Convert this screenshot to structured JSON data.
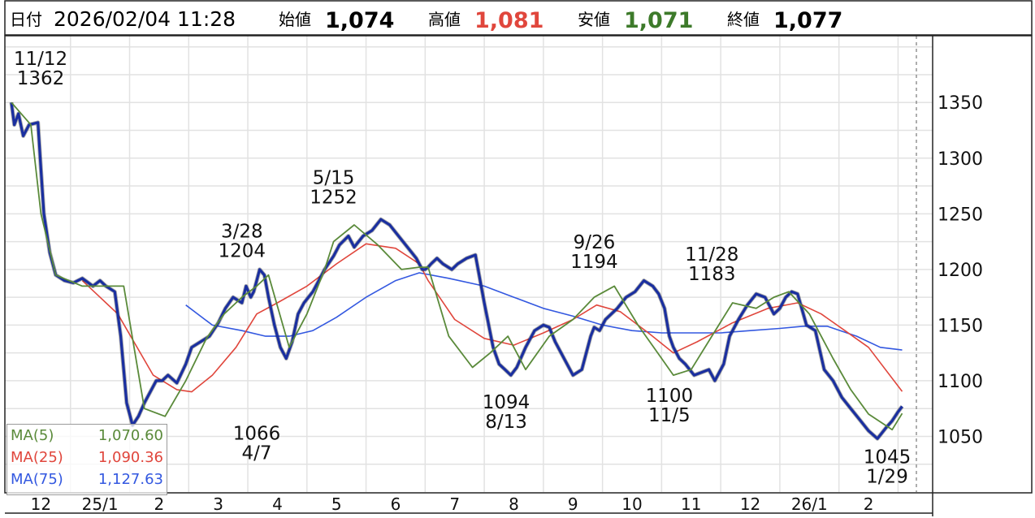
{
  "header": {
    "date_label": "日付",
    "datetime": "2026/02/04 11:28",
    "open_label": "始値",
    "open_value": "1,074",
    "high_label": "高値",
    "high_value": "1,081",
    "low_label": "安値",
    "low_value": "1,071",
    "close_label": "終値",
    "close_value": "1,077"
  },
  "legend": [
    {
      "label": "MA(5)",
      "value": "1,070.60",
      "color": "#5a8a3a"
    },
    {
      "label": "MA(25)",
      "value": "1,090.36",
      "color": "#e0463c"
    },
    {
      "label": "MA(75)",
      "value": "1,127.63",
      "color": "#3358e0"
    }
  ],
  "colors": {
    "price": "#1a2fa0",
    "price_shadow": "#111111",
    "high_text": "#e0463c",
    "low_text": "#3d7a2a",
    "grid": "#e2e2e2",
    "ma5": "#5a8a3a",
    "ma25": "#e0463c",
    "ma75": "#3358e0"
  },
  "chart_data": {
    "type": "line",
    "y_ticks": [
      1050,
      1100,
      1150,
      1200,
      1250,
      1300,
      1350
    ],
    "ylim": [
      1000,
      1410
    ],
    "x_ticks": [
      "12",
      "25/1",
      "2",
      "3",
      "4",
      "5",
      "6",
      "7",
      "8",
      "9",
      "10",
      "11",
      "12",
      "26/1",
      "2"
    ],
    "xlim": [
      0,
      15.2
    ],
    "grid": true,
    "annotations": [
      {
        "date": "11/12",
        "value": "1362",
        "x": 0.05,
        "y": 1362,
        "pos": "above"
      },
      {
        "date": "3/28",
        "value": "1204",
        "x": 3.9,
        "y": 1204,
        "pos": "above"
      },
      {
        "date": "4/7",
        "value": "1066",
        "x": 4.15,
        "y": 1066,
        "pos": "below"
      },
      {
        "date": "5/15",
        "value": "1252",
        "x": 5.45,
        "y": 1252,
        "pos": "above"
      },
      {
        "date": "8/13",
        "value": "1094",
        "x": 8.37,
        "y": 1094,
        "pos": "below"
      },
      {
        "date": "9/26",
        "value": "1194",
        "x": 9.86,
        "y": 1194,
        "pos": "above"
      },
      {
        "date": "11/5",
        "value": "1100",
        "x": 11.13,
        "y": 1100,
        "pos": "below"
      },
      {
        "date": "11/28",
        "value": "1183",
        "x": 11.85,
        "y": 1183,
        "pos": "above"
      },
      {
        "date": "1/29",
        "value": "1045",
        "x": 14.92,
        "y": 1045,
        "pos": "below"
      }
    ],
    "series": [
      {
        "name": "MA(5)",
        "x": [
          0,
          0.33,
          0.5,
          0.75,
          1.2,
          1.9,
          2.25,
          2.6,
          2.95,
          3.3,
          3.6,
          3.9,
          4.15,
          4.35,
          4.7,
          5.0,
          5.3,
          5.45,
          5.8,
          6.2,
          6.6,
          6.9,
          7.05,
          7.4,
          7.8,
          8.1,
          8.4,
          8.7,
          9.1,
          9.5,
          9.86,
          10.2,
          10.6,
          11.0,
          11.2,
          11.5,
          11.85,
          12.2,
          12.6,
          12.9,
          13.15,
          13.5,
          13.9,
          14.2,
          14.5,
          14.9,
          15.07
        ],
        "values": [
          1350,
          1330,
          1250,
          1195,
          1185,
          1185,
          1075,
          1068,
          1100,
          1138,
          1160,
          1175,
          1185,
          1195,
          1130,
          1160,
          1200,
          1225,
          1240,
          1222,
          1200,
          1202,
          1202,
          1140,
          1112,
          1125,
          1140,
          1110,
          1140,
          1155,
          1175,
          1185,
          1150,
          1120,
          1105,
          1110,
          1140,
          1170,
          1165,
          1175,
          1180,
          1160,
          1120,
          1092,
          1070,
          1056,
          1070.6
        ]
      },
      {
        "name": "MA(25)",
        "x": [
          1.2,
          1.8,
          2.4,
          2.8,
          3.05,
          3.4,
          3.8,
          4.15,
          4.5,
          5.0,
          5.5,
          6.0,
          6.5,
          6.9,
          7.05,
          7.5,
          8.0,
          8.5,
          9.0,
          9.5,
          9.9,
          10.3,
          10.8,
          11.2,
          11.6,
          12.2,
          12.8,
          13.3,
          13.7,
          14.1,
          14.5,
          15.07
        ],
        "values": [
          1190,
          1160,
          1105,
          1092,
          1090,
          1105,
          1130,
          1160,
          1170,
          1185,
          1205,
          1223,
          1219,
          1205,
          1190,
          1155,
          1138,
          1132,
          1143,
          1155,
          1168,
          1162,
          1142,
          1125,
          1135,
          1152,
          1165,
          1170,
          1160,
          1145,
          1130,
          1090.36
        ]
      },
      {
        "name": "MA(75)",
        "x": [
          2.95,
          3.4,
          3.9,
          4.3,
          4.7,
          5.1,
          5.5,
          6.0,
          6.5,
          6.9,
          7.4,
          8.0,
          8.5,
          9.0,
          9.5,
          10.0,
          10.5,
          11.0,
          11.5,
          12.0,
          12.5,
          13.0,
          13.4,
          13.8,
          14.3,
          14.7,
          15.07
        ],
        "values": [
          1168,
          1150,
          1145,
          1140,
          1140,
          1145,
          1157,
          1175,
          1190,
          1197,
          1192,
          1185,
          1175,
          1165,
          1158,
          1150,
          1145,
          1143,
          1143,
          1143,
          1145,
          1147,
          1149,
          1149,
          1140,
          1130,
          1127.63
        ]
      },
      {
        "name": "price",
        "x": [
          0,
          0.05,
          0.12,
          0.2,
          0.3,
          0.45,
          0.5,
          0.55,
          0.65,
          0.75,
          0.9,
          1.05,
          1.2,
          1.38,
          1.5,
          1.6,
          1.75,
          1.85,
          1.95,
          2.05,
          2.15,
          2.25,
          2.35,
          2.45,
          2.55,
          2.65,
          2.8,
          2.95,
          3.05,
          3.2,
          3.35,
          3.5,
          3.62,
          3.75,
          3.9,
          3.97,
          4.05,
          4.1,
          4.15,
          4.2,
          4.28,
          4.35,
          4.45,
          4.55,
          4.65,
          4.75,
          4.85,
          4.95,
          5.1,
          5.2,
          5.3,
          5.45,
          5.55,
          5.7,
          5.8,
          5.95,
          6.1,
          6.25,
          6.4,
          6.55,
          6.7,
          6.85,
          6.95,
          7.0,
          7.05,
          7.1,
          7.2,
          7.3,
          7.45,
          7.55,
          7.7,
          7.85,
          8.0,
          8.15,
          8.25,
          8.35,
          8.45,
          8.55,
          8.7,
          8.85,
          9.0,
          9.1,
          9.2,
          9.35,
          9.5,
          9.65,
          9.8,
          9.86,
          9.95,
          10.05,
          10.15,
          10.25,
          10.4,
          10.55,
          10.7,
          10.85,
          10.95,
          11.05,
          11.13,
          11.2,
          11.3,
          11.4,
          11.55,
          11.7,
          11.8,
          11.9,
          12.05,
          12.15,
          12.3,
          12.45,
          12.6,
          12.75,
          12.9,
          13.0,
          13.1,
          13.2,
          13.3,
          13.45,
          13.6,
          13.75,
          13.9,
          14.05,
          14.2,
          14.35,
          14.5,
          14.65,
          14.8,
          14.9,
          15.0,
          15.07
        ],
        "values": [
          1350,
          1330,
          1340,
          1320,
          1330,
          1332,
          1290,
          1250,
          1215,
          1195,
          1190,
          1188,
          1192,
          1185,
          1190,
          1185,
          1180,
          1140,
          1080,
          1060,
          1068,
          1080,
          1090,
          1100,
          1100,
          1105,
          1098,
          1115,
          1130,
          1135,
          1140,
          1152,
          1165,
          1175,
          1170,
          1185,
          1175,
          1180,
          1190,
          1200,
          1195,
          1175,
          1150,
          1130,
          1120,
          1135,
          1160,
          1170,
          1180,
          1190,
          1200,
          1212,
          1222,
          1230,
          1220,
          1230,
          1235,
          1245,
          1240,
          1230,
          1220,
          1210,
          1200,
          1200,
          1202,
          1205,
          1210,
          1205,
          1200,
          1205,
          1210,
          1213,
          1170,
          1130,
          1115,
          1110,
          1105,
          1112,
          1130,
          1145,
          1150,
          1148,
          1135,
          1120,
          1105,
          1110,
          1140,
          1148,
          1145,
          1155,
          1160,
          1165,
          1175,
          1180,
          1190,
          1185,
          1178,
          1165,
          1140,
          1130,
          1120,
          1115,
          1105,
          1108,
          1110,
          1100,
          1115,
          1140,
          1155,
          1168,
          1178,
          1175,
          1160,
          1165,
          1175,
          1180,
          1178,
          1150,
          1145,
          1110,
          1100,
          1085,
          1075,
          1065,
          1055,
          1048,
          1058,
          1064,
          1072,
          1077
        ]
      }
    ]
  }
}
